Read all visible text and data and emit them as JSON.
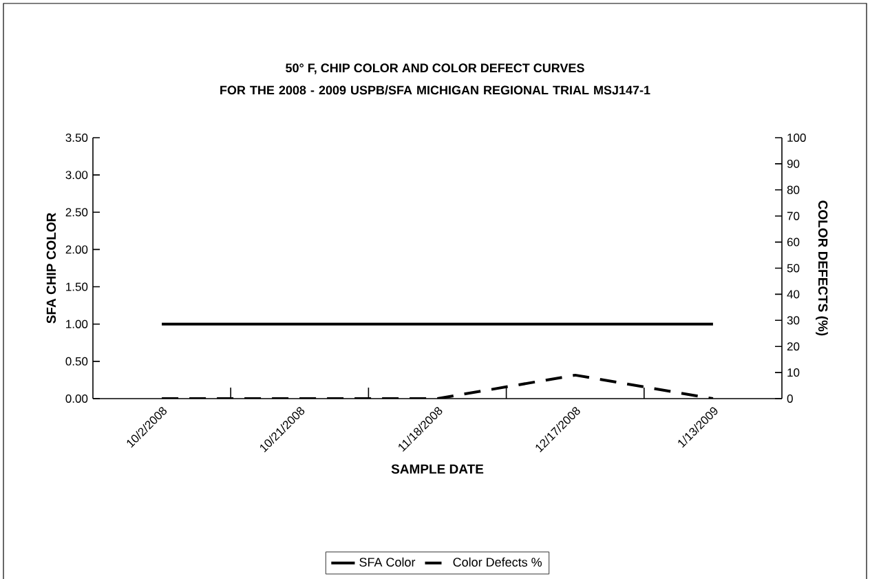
{
  "chart_data": {
    "type": "line",
    "title": "50° F, CHIP COLOR AND COLOR DEFECT CURVES",
    "subtitle": "FOR THE 2008 - 2009 USPB/SFA MICHIGAN REGIONAL TRIAL MSJ147-1",
    "xlabel": "SAMPLE DATE",
    "ylabel": "SFA CHIP COLOR",
    "y2label": "COLOR DEFECTS (%)",
    "categories": [
      "10/2/2008",
      "10/21/2008",
      "11/18/2008",
      "12/17/2008",
      "1/13/2009"
    ],
    "series": [
      {
        "name": "SFA Color",
        "color": "#000000",
        "values": [
          1.0,
          1.0,
          1.0,
          1.0,
          1.0
        ],
        "line_style": "solid"
      },
      {
        "name": "Color Defects %",
        "color": "#000000",
        "values": [
          0,
          0,
          0,
          9,
          0
        ],
        "axis": "y2",
        "line_style": "dashed"
      }
    ],
    "ylim": [
      0,
      3.5
    ],
    "yticks": [
      {
        "value": 0,
        "label": "0.00"
      },
      {
        "value": 0.5,
        "label": "0.50"
      },
      {
        "value": 1,
        "label": "1.00"
      },
      {
        "value": 1.5,
        "label": "1.50"
      },
      {
        "value": 2,
        "label": "2.00"
      },
      {
        "value": 2.5,
        "label": "2.50"
      },
      {
        "value": 3,
        "label": "3.00"
      },
      {
        "value": 3.5,
        "label": "3.50"
      }
    ],
    "y2lim": [
      0,
      100
    ],
    "y2ticks": [
      0,
      10,
      20,
      30,
      40,
      50,
      60,
      70,
      80,
      90,
      100
    ],
    "grid": false,
    "legend": "bottom",
    "marker": "none"
  }
}
